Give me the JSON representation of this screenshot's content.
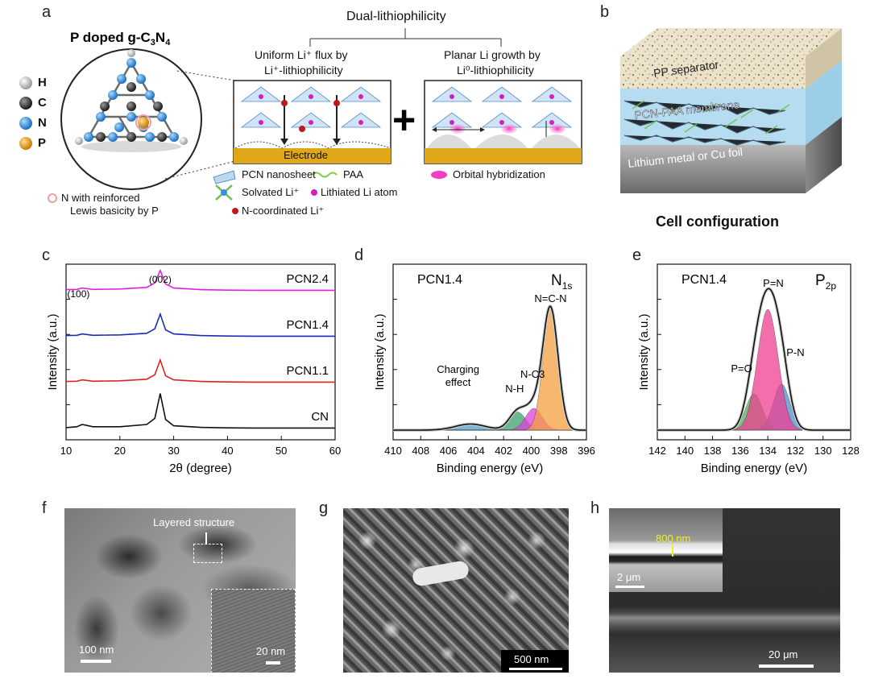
{
  "panels": {
    "a": "a",
    "b": "b",
    "c": "c",
    "d": "d",
    "e": "e",
    "f": "f",
    "g": "g",
    "h": "h"
  },
  "panel_a": {
    "title": "P doped g-C3N4",
    "atoms": [
      {
        "label": "H",
        "color": "#e8e8e8"
      },
      {
        "label": "C",
        "color": "#444444"
      },
      {
        "label": "N",
        "color": "#3a8ee0"
      },
      {
        "label": "P",
        "color": "#f0a020"
      }
    ],
    "note_line1": "N with reinforced",
    "note_line2": "Lewis basicity by P",
    "dual": "Dual-lithiophilicity",
    "left_title_1": "Uniform Li⁺ flux by",
    "left_title_2": "Li⁺-lithiophilicity",
    "right_title_1": "Planar Li growth by",
    "right_title_2": "Li⁰-lithiophilicity",
    "electrode": "Electrode",
    "legend": {
      "pcn": "PCN nanosheet",
      "paa": "PAA",
      "solvated": "Solvated Li⁺",
      "lithiated": "Lithiated Li atom",
      "ncoord": "N-coordinated Li⁺",
      "orbital": "Orbital hybridization"
    }
  },
  "panel_b": {
    "layer_top": "PP separator",
    "layer_mid": "PCN-PAA membrane",
    "layer_bot": "Lithium metal or Cu foil",
    "caption": "Cell configuration"
  },
  "chart_data": [
    {
      "id": "c",
      "type": "line",
      "xlabel": "2θ (degree)",
      "ylabel": "Intensity (a.u.)",
      "xlim": [
        10,
        60
      ],
      "xticks": [
        10,
        20,
        30,
        40,
        50,
        60
      ],
      "peak_labels": [
        "(100)",
        "(002)"
      ],
      "series": [
        {
          "name": "PCN2.4",
          "color": "#e020e0",
          "offset": 3,
          "x": [
            10,
            12,
            13,
            15,
            20,
            25,
            26.5,
            27.5,
            28.5,
            30,
            35,
            40,
            45,
            50,
            55,
            60
          ],
          "y": [
            0.05,
            0.06,
            0.12,
            0.06,
            0.08,
            0.15,
            0.35,
            0.9,
            0.3,
            0.12,
            0.05,
            0.03,
            0.02,
            0.02,
            0.02,
            0.02
          ]
        },
        {
          "name": "PCN1.4",
          "color": "#1c2ab8",
          "offset": 2,
          "x": [
            10,
            12,
            13,
            15,
            20,
            25,
            26.5,
            27.5,
            28.5,
            30,
            35,
            40,
            45,
            50,
            55,
            60
          ],
          "y": [
            0.05,
            0.06,
            0.12,
            0.06,
            0.08,
            0.15,
            0.35,
            1.0,
            0.3,
            0.12,
            0.05,
            0.03,
            0.02,
            0.02,
            0.02,
            0.02
          ]
        },
        {
          "name": "PCN1.1",
          "color": "#e02020",
          "offset": 1,
          "x": [
            10,
            12,
            13,
            15,
            20,
            25,
            26.5,
            27.5,
            28.5,
            30,
            35,
            40,
            45,
            50,
            55,
            60
          ],
          "y": [
            0.05,
            0.06,
            0.12,
            0.06,
            0.08,
            0.15,
            0.35,
            1.0,
            0.3,
            0.12,
            0.05,
            0.03,
            0.02,
            0.02,
            0.02,
            0.02
          ]
        },
        {
          "name": "CN",
          "color": "#111111",
          "offset": 0,
          "x": [
            10,
            12,
            13,
            15,
            20,
            25,
            26.5,
            27.5,
            28.5,
            30,
            35,
            40,
            45,
            50,
            55,
            60
          ],
          "y": [
            0.04,
            0.08,
            0.18,
            0.08,
            0.08,
            0.18,
            0.45,
            1.55,
            0.4,
            0.12,
            0.05,
            0.03,
            0.02,
            0.02,
            0.02,
            0.02
          ]
        }
      ]
    },
    {
      "id": "d",
      "type": "area",
      "title": "PCN1.4",
      "element": "N",
      "element_sub": "1s",
      "xlabel": "Binding energy (eV)",
      "ylabel": "Intensity (a.u.)",
      "xlim": [
        410,
        396
      ],
      "xticks": [
        410,
        408,
        406,
        404,
        402,
        400,
        398,
        396
      ],
      "components": [
        {
          "name": "N=C-N",
          "center": 398.6,
          "height": 1.0,
          "width": 0.55,
          "color": "#f5a040"
        },
        {
          "name": "N-C3",
          "center": 399.8,
          "height": 0.18,
          "width": 0.6,
          "color": "#e040e0"
        },
        {
          "name": "N-H",
          "center": 401.0,
          "height": 0.15,
          "width": 0.6,
          "color": "#40a070"
        },
        {
          "name": "Charging effect",
          "center": 404.4,
          "height": 0.05,
          "width": 1.1,
          "color": "#4aa0d0"
        }
      ]
    },
    {
      "id": "e",
      "type": "area",
      "title": "PCN1.4",
      "element": "P",
      "element_sub": "2p",
      "xlabel": "Binding energy (eV)",
      "ylabel": "Intensity (a.u.)",
      "xlim": [
        142,
        128
      ],
      "xticks": [
        142,
        140,
        138,
        136,
        134,
        132,
        130,
        128
      ],
      "fit_range": [
        138,
        131.5
      ],
      "components": [
        {
          "name": "P=N",
          "center": 134.0,
          "height": 1.0,
          "width": 0.75,
          "color": "#f04090"
        },
        {
          "name": "P-N",
          "center": 133.0,
          "height": 0.38,
          "width": 0.6,
          "color": "#4a90d0"
        },
        {
          "name": "P=O",
          "center": 135.0,
          "height": 0.3,
          "width": 0.6,
          "color": "#50b060"
        }
      ]
    }
  ],
  "panel_f": {
    "annotation": "Layered structure",
    "scale_main": "100 nm",
    "scale_inset": "20 nm"
  },
  "panel_g": {
    "scale": "500 nm"
  },
  "panel_h": {
    "inset_thickness": "800 nm",
    "scale_inset": "2 μm",
    "scale_main": "20 μm"
  }
}
